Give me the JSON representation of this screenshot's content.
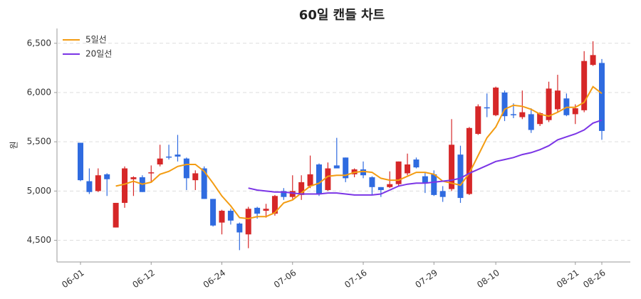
{
  "chart_data": {
    "type": "candlestick",
    "title": "60일 캔들 차트",
    "ylabel": "원",
    "categories": [
      "06-01",
      null,
      null,
      null,
      null,
      null,
      null,
      null,
      "06-12",
      null,
      null,
      null,
      null,
      null,
      null,
      null,
      "06-24",
      null,
      null,
      null,
      null,
      null,
      null,
      null,
      "07-06",
      null,
      null,
      null,
      null,
      null,
      null,
      null,
      "07-16",
      null,
      null,
      null,
      null,
      null,
      null,
      null,
      "07-29",
      null,
      null,
      null,
      null,
      null,
      null,
      "08-10",
      null,
      null,
      null,
      null,
      null,
      null,
      null,
      null,
      "08-21",
      null,
      null,
      "08-26"
    ],
    "open": [
      5490,
      5100,
      5000,
      5170,
      4630,
      4880,
      5120,
      5140,
      5180,
      5270,
      5350,
      5370,
      5330,
      5110,
      5230,
      4920,
      4680,
      4800,
      4670,
      4560,
      4830,
      4800,
      4770,
      5000,
      4940,
      4960,
      5050,
      5270,
      5010,
      5260,
      5340,
      5170,
      5220,
      5140,
      5040,
      5040,
      5070,
      5180,
      5320,
      5150,
      5170,
      5000,
      5020,
      5370,
      4970,
      5580,
      5850,
      5770,
      6000,
      5780,
      5750,
      5780,
      5680,
      5720,
      5830,
      5940,
      5780,
      5820,
      6280,
      6300
    ],
    "high": [
      5490,
      5230,
      5230,
      5180,
      4880,
      5250,
      5150,
      5160,
      5260,
      5470,
      5470,
      5570,
      5340,
      5210,
      5250,
      4920,
      4810,
      4820,
      4680,
      4840,
      4840,
      4870,
      4960,
      5030,
      5160,
      5160,
      5360,
      5280,
      5290,
      5540,
      5340,
      5230,
      5300,
      5150,
      5040,
      5200,
      5300,
      5380,
      5340,
      5190,
      5210,
      5050,
      5730,
      5460,
      5650,
      5880,
      5990,
      6060,
      6020,
      5890,
      6020,
      5840,
      5800,
      6110,
      6180,
      5990,
      5880,
      6420,
      6520,
      6340
    ],
    "low": [
      5100,
      4970,
      4990,
      4950,
      4630,
      4830,
      4950,
      4990,
      5090,
      5250,
      5320,
      5300,
      5010,
      5010,
      4920,
      4640,
      4560,
      4660,
      4400,
      4420,
      4720,
      4730,
      4750,
      4910,
      4920,
      4910,
      5030,
      4950,
      5000,
      5230,
      5090,
      5140,
      5130,
      4960,
      4940,
      5030,
      5050,
      5160,
      5230,
      4980,
      4950,
      4890,
      5000,
      4880,
      4960,
      5570,
      5750,
      5760,
      5710,
      5740,
      5730,
      5590,
      5660,
      5700,
      5800,
      5760,
      5680,
      5800,
      6270,
      5520
    ],
    "close": [
      5110,
      4990,
      5160,
      5120,
      4880,
      5230,
      5140,
      4990,
      5190,
      5330,
      5340,
      5350,
      5130,
      5180,
      4920,
      4650,
      4800,
      4700,
      4580,
      4820,
      4770,
      4820,
      4950,
      4940,
      5000,
      5090,
      5170,
      4970,
      5230,
      5230,
      5130,
      5220,
      5160,
      5040,
      5010,
      5070,
      5300,
      5270,
      5240,
      5080,
      4960,
      4940,
      5470,
      4930,
      5640,
      5860,
      5840,
      6050,
      5760,
      5770,
      5800,
      5620,
      5790,
      6040,
      6020,
      5770,
      5840,
      6320,
      6380,
      5610
    ],
    "up_color": "#d62728",
    "down_color": "#2f6be0",
    "series": [
      {
        "name": "5일선",
        "color": "#f39c12",
        "values": [
          null,
          null,
          null,
          null,
          5050,
          5070,
          5100,
          5070,
          5090,
          5170,
          5200,
          5250,
          5270,
          5270,
          5200,
          5080,
          4950,
          4850,
          4730,
          4720,
          4740,
          4740,
          4780,
          4880,
          4910,
          4980,
          5050,
          5080,
          5150,
          5160,
          5160,
          5190,
          5200,
          5190,
          5130,
          5110,
          5110,
          5150,
          5190,
          5190,
          5170,
          5100,
          5080,
          5060,
          5180,
          5360,
          5540,
          5650,
          5830,
          5870,
          5860,
          5830,
          5780,
          5760,
          5800,
          5850,
          5850,
          5900,
          6060,
          5990
        ]
      },
      {
        "name": "20일선",
        "color": "#7b35e6",
        "values": [
          null,
          null,
          null,
          null,
          null,
          null,
          null,
          null,
          null,
          null,
          null,
          null,
          null,
          null,
          null,
          null,
          null,
          null,
          null,
          5030,
          5010,
          5000,
          4990,
          4990,
          4980,
          4970,
          4970,
          4970,
          4980,
          4980,
          4970,
          4960,
          4960,
          4960,
          4970,
          5010,
          5050,
          5070,
          5080,
          5080,
          5090,
          5100,
          5110,
          5130,
          5180,
          5220,
          5260,
          5300,
          5320,
          5340,
          5370,
          5390,
          5420,
          5460,
          5520,
          5550,
          5580,
          5620,
          5690,
          5720
        ]
      }
    ],
    "ylim": [
      4280,
      6650
    ],
    "yticks": [
      {
        "value": 4500,
        "label": "4,500"
      },
      {
        "value": 5000,
        "label": "5,000"
      },
      {
        "value": 5500,
        "label": "5,500"
      },
      {
        "value": 6000,
        "label": "6,000"
      },
      {
        "value": 6500,
        "label": "6,500"
      }
    ],
    "grid": true,
    "legend": "upper left"
  }
}
